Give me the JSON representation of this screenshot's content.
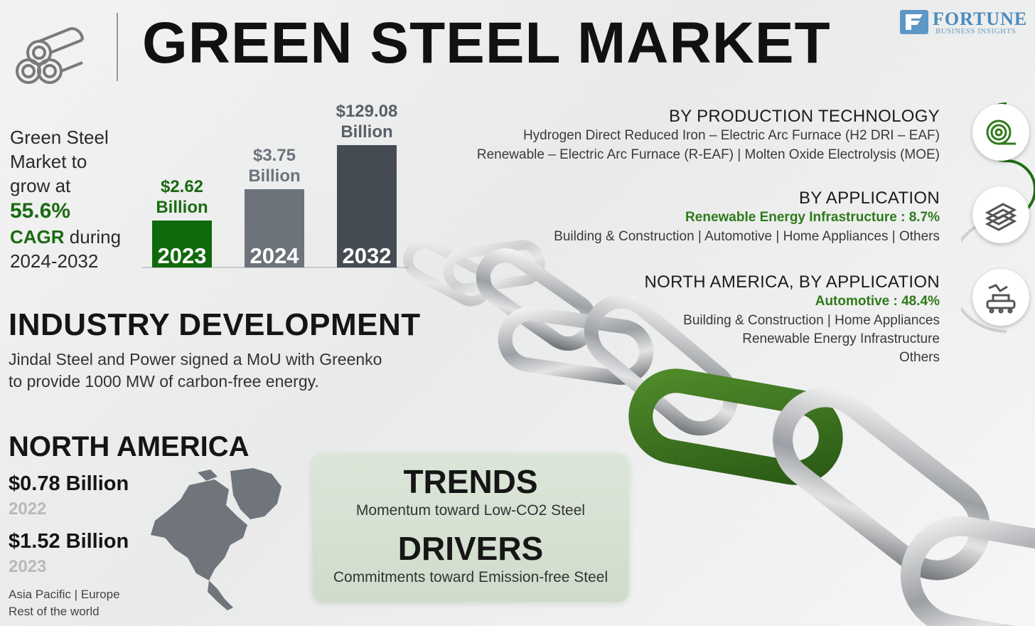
{
  "header": {
    "title": "GREEN STEEL MARKET",
    "brand_name": "FORTUNE",
    "brand_sub": "BUSINESS INSIGHTS",
    "icon": "steel-pipes-icon"
  },
  "growth": {
    "line1": "Green Steel",
    "line2": "Market to",
    "line3": "grow at",
    "cagr_value": "55.6%",
    "cagr_label": "CAGR",
    "during": " during",
    "period": "2024-2032"
  },
  "chart_data": {
    "type": "bar",
    "categories": [
      "2023",
      "2024",
      "2032"
    ],
    "values": [
      2.62,
      3.75,
      129.08
    ],
    "value_labels": [
      [
        "$2.62",
        "Billion"
      ],
      [
        "$3.75",
        "Billion"
      ],
      [
        "$129.08",
        "Billion"
      ]
    ],
    "units": "USD Billion",
    "colors": [
      "#0f6a0c",
      "#6c737b",
      "#454b53"
    ],
    "label_colors": [
      "#1b6a12",
      "#6c737b",
      "#5a5f66"
    ],
    "note": "bar heights not to scale"
  },
  "segments": [
    {
      "heading": "BY PRODUCTION TECHNOLOGY",
      "highlight": "",
      "lines": [
        "Hydrogen Direct Reduced Iron – Electric Arc Furnace (H2 DRI – EAF)",
        "Renewable – Electric Arc Furnace (R-EAF)  |  Molten Oxide Electrolysis (MOE)"
      ],
      "icon": "steel-coil-icon"
    },
    {
      "heading": "BY APPLICATION",
      "highlight": "Renewable Energy Infrastructure : 8.7%",
      "lines": [
        "Building & Construction  |  Automotive  |  Home Appliances  |  Others"
      ],
      "icon": "steel-beams-icon"
    },
    {
      "heading": "NORTH AMERICA, BY APPLICATION",
      "highlight": "Automotive : 48.4%",
      "lines": [
        "Building & Construction  |  Home Appliances",
        "Renewable Energy Infrastructure",
        "Others"
      ],
      "icon": "assembly-robot-icon"
    }
  ],
  "industry": {
    "heading": "INDUSTRY DEVELOPMENT",
    "line1": "Jindal Steel and Power signed a MoU with Greenko",
    "line2": "to provide 1000 MW of carbon-free energy."
  },
  "north_america": {
    "heading": "NORTH AMERICA",
    "value1": "$0.78 Billion",
    "year1": "2022",
    "value2": "$1.52 Billion",
    "year2": "2023",
    "regions1": "Asia Pacific  |  Europe",
    "regions2": "Rest of the world",
    "icon": "north-america-map-icon"
  },
  "trends": {
    "heading": "TRENDS",
    "text": "Momentum toward Low-CO2 Steel"
  },
  "drivers": {
    "heading": "DRIVERS",
    "text": "Commitments toward Emission-free Steel"
  }
}
